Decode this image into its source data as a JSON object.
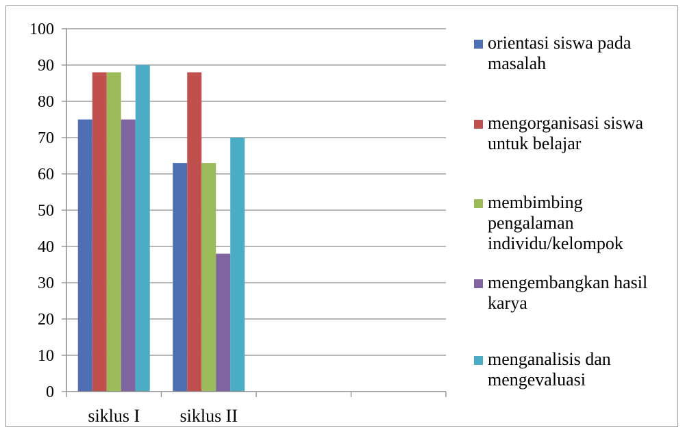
{
  "chart_data": {
    "type": "bar",
    "categories": [
      "siklus I",
      "siklus II",
      "",
      ""
    ],
    "series": [
      {
        "name": "orientasi siswa pada masalah",
        "color": "#4f6fb5",
        "values": [
          75,
          63,
          null,
          null
        ]
      },
      {
        "name": "mengorganisasi siswa untuk belajar",
        "color": "#c0504d",
        "values": [
          88,
          88,
          null,
          null
        ]
      },
      {
        "name": "membimbing pengalaman individu/kelompok",
        "color": "#9bbb59",
        "values": [
          88,
          63,
          null,
          null
        ]
      },
      {
        "name": "mengembangkan hasil karya",
        "color": "#8064a2",
        "values": [
          75,
          38,
          null,
          null
        ]
      },
      {
        "name": "menganalisis dan mengevaluasi",
        "color": "#4bacc6",
        "values": [
          90,
          70,
          null,
          null
        ]
      }
    ],
    "ylim": [
      0,
      100
    ],
    "yticks": [
      "0",
      "10",
      "20",
      "30",
      "40",
      "50",
      "60",
      "70",
      "80",
      "90",
      "100"
    ],
    "grid": true,
    "legend": "right"
  }
}
